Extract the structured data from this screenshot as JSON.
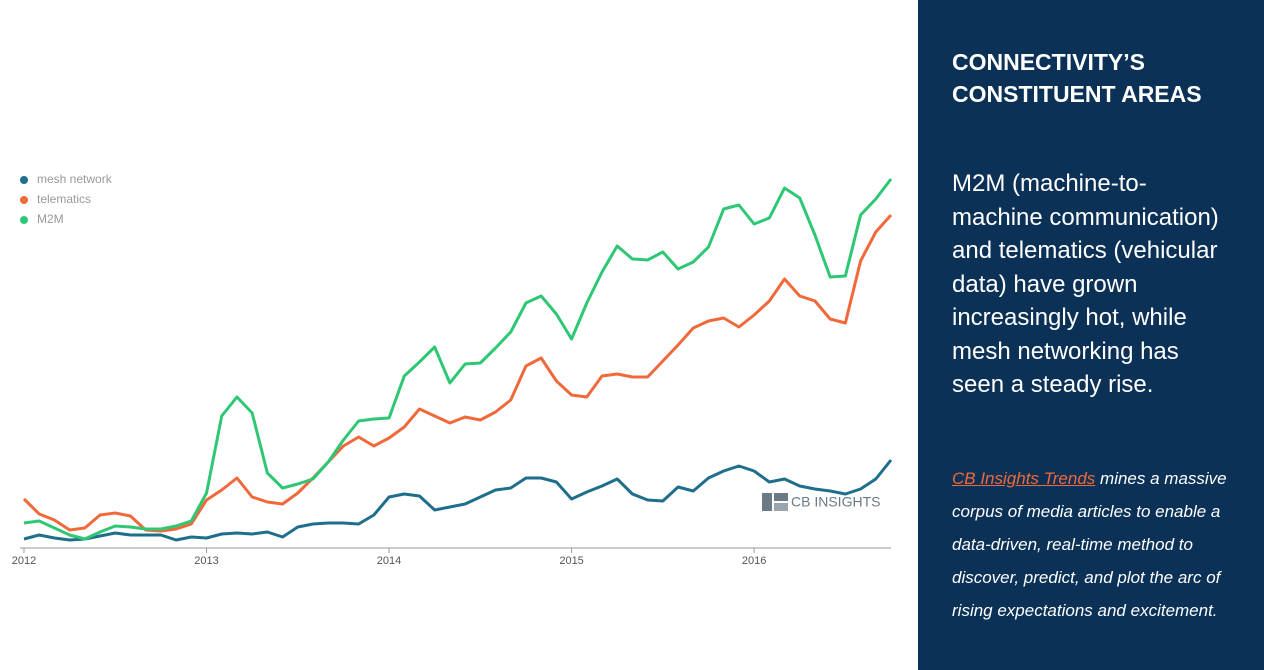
{
  "chart_data": {
    "type": "line",
    "x": [
      0,
      1,
      2,
      3,
      4,
      5,
      6,
      7,
      8,
      9,
      10,
      11,
      12,
      13,
      14,
      15,
      16,
      17,
      18,
      19,
      20,
      21,
      22,
      23,
      24,
      25,
      26,
      27,
      28,
      29,
      30,
      31,
      32,
      33,
      34,
      35,
      36,
      37,
      38,
      39,
      40,
      41,
      42,
      43,
      44,
      45,
      46,
      47,
      48,
      49,
      50,
      51,
      52,
      53,
      54,
      55,
      56,
      57
    ],
    "xlim": [
      0,
      57
    ],
    "xticks": [
      {
        "value": 0,
        "label": "2012"
      },
      {
        "value": 12,
        "label": "2013"
      },
      {
        "value": 24,
        "label": "2014"
      },
      {
        "value": 36,
        "label": "2015"
      },
      {
        "value": 48,
        "label": "2016"
      }
    ],
    "ylim": [
      0,
      400
    ],
    "legend": "top-left",
    "series": [
      {
        "name": "mesh network",
        "color": "#1f6e8c",
        "values": [
          9,
          13,
          10,
          8,
          9,
          12,
          15,
          13,
          13,
          13,
          8,
          11,
          10,
          14,
          15,
          14,
          16,
          11,
          21,
          24,
          25,
          25,
          24,
          33,
          51,
          54,
          52,
          38,
          41,
          44,
          51,
          58,
          60,
          70,
          70,
          66,
          49,
          56,
          62,
          69,
          54,
          48,
          47,
          61,
          57,
          70,
          77,
          82,
          77,
          66,
          69,
          62,
          59,
          57,
          54,
          59,
          69,
          88
        ]
      },
      {
        "name": "telematics",
        "color": "#f0693a",
        "values": [
          49,
          34,
          28,
          18,
          20,
          33,
          35,
          32,
          18,
          17,
          19,
          24,
          48,
          58,
          70,
          51,
          46,
          44,
          55,
          70,
          86,
          102,
          111,
          102,
          110,
          121,
          139,
          132,
          125,
          131,
          128,
          136,
          148,
          182,
          190,
          167,
          153,
          151,
          172,
          174,
          171,
          171,
          187,
          203,
          220,
          227,
          230,
          221,
          233,
          247,
          269,
          252,
          247,
          229,
          225,
          287,
          316,
          333
        ]
      },
      {
        "name": "M2M",
        "color": "#2ec774",
        "values": [
          25,
          27,
          20,
          13,
          9,
          16,
          22,
          21,
          19,
          19,
          22,
          27,
          55,
          132,
          151,
          135,
          75,
          60,
          64,
          69,
          86,
          108,
          127,
          129,
          130,
          172,
          186,
          201,
          165,
          184,
          185,
          200,
          216,
          245,
          252,
          234,
          209,
          245,
          276,
          302,
          289,
          288,
          296,
          279,
          286,
          301,
          339,
          343,
          324,
          330,
          360,
          350,
          313,
          271,
          272,
          333,
          349,
          369
        ]
      }
    ],
    "watermark": "CB INSIGHTS"
  },
  "panel": {
    "title": "CONNECTIVITY’S CONSTITUENT AREAS",
    "body": "M2M (machine-to-machine communication) and telematics (vehicular data) have grown increasingly hot, while mesh networking has seen a steady rise.",
    "link": "CB Insights Trends",
    "footer": "mines a massive corpus of media articles to enable a data-driven, real-time method to discover, predict, and plot the arc of rising expectations and excitement."
  }
}
